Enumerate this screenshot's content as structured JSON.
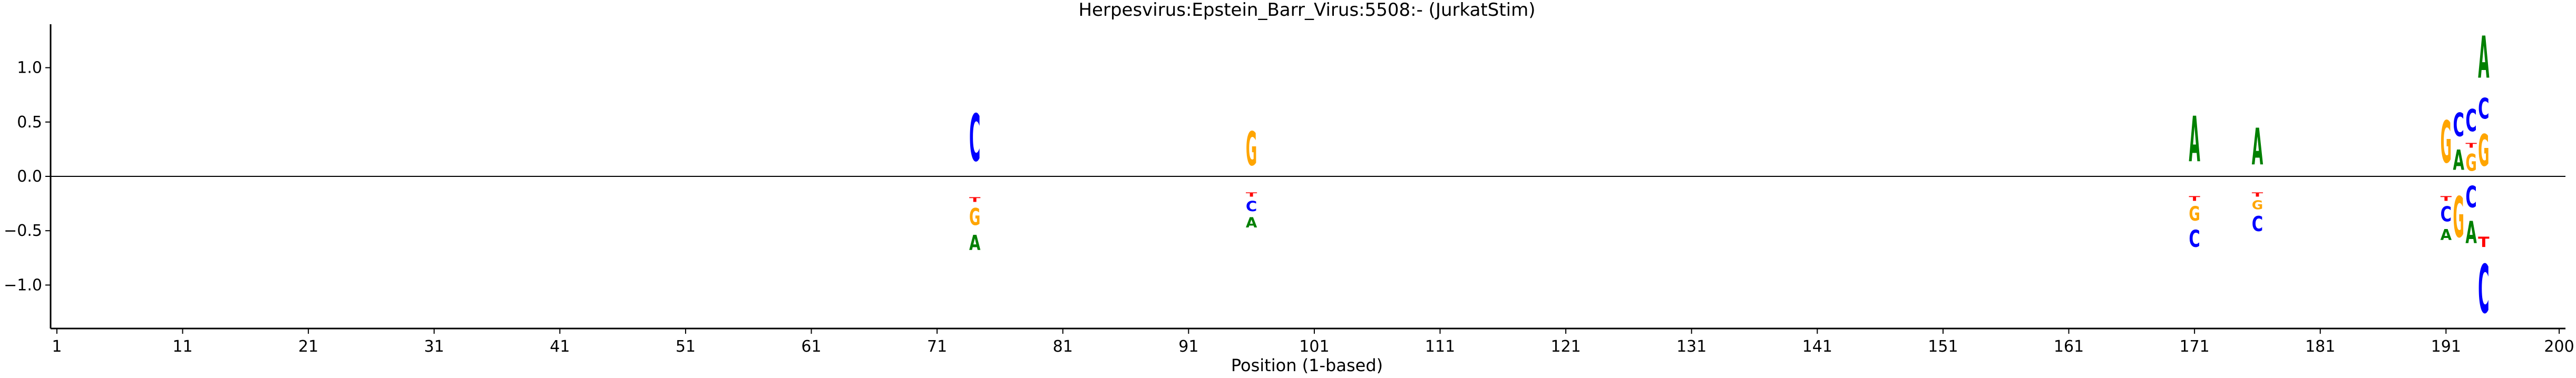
{
  "chart_data": {
    "type": "sequence-logo",
    "title": "Herpesvirus:Epstein_Barr_Virus:5508:-  (JurkatStim)",
    "xlabel": "Position (1-based)",
    "ylabel": "",
    "xlim": [
      0.5,
      200.5
    ],
    "ylim": [
      -1.4,
      1.4
    ],
    "xticks": [
      1,
      11,
      21,
      31,
      41,
      51,
      61,
      71,
      81,
      91,
      101,
      111,
      121,
      131,
      141,
      151,
      161,
      171,
      181,
      191,
      200
    ],
    "yticks": [
      -1.0,
      -0.5,
      0.0,
      0.5,
      1.0
    ],
    "ytick_labels": [
      "−1.0",
      "−0.5",
      "0.0",
      "0.5",
      "1.0"
    ],
    "grid": false,
    "legend": "none",
    "colors": {
      "A": "#008000",
      "C": "#0000ff",
      "G": "#ffa500",
      "T": "#ff0000"
    },
    "positions": [
      {
        "pos": 74,
        "stack": [
          {
            "letter": "C",
            "y0": 0.0,
            "y1": 0.7
          },
          {
            "letter": "T",
            "y0": -0.18,
            "y1": -0.25
          },
          {
            "letter": "G",
            "y0": -0.25,
            "y1": -0.5
          },
          {
            "letter": "A",
            "y0": -0.5,
            "y1": -0.72
          }
        ]
      },
      {
        "pos": 96,
        "stack": [
          {
            "letter": "G",
            "y0": 0.0,
            "y1": 0.5
          },
          {
            "letter": "T",
            "y0": -0.14,
            "y1": -0.2
          },
          {
            "letter": "C",
            "y0": -0.2,
            "y1": -0.35
          },
          {
            "letter": "A",
            "y0": -0.35,
            "y1": -0.5
          }
        ]
      },
      {
        "pos": 171,
        "stack": [
          {
            "letter": "A",
            "y0": 0.0,
            "y1": 0.67
          },
          {
            "letter": "T",
            "y0": -0.17,
            "y1": -0.24
          },
          {
            "letter": "G",
            "y0": -0.24,
            "y1": -0.45
          },
          {
            "letter": "C",
            "y0": -0.45,
            "y1": -0.7
          }
        ]
      },
      {
        "pos": 176,
        "stack": [
          {
            "letter": "A",
            "y0": 0.0,
            "y1": 0.54
          },
          {
            "letter": "T",
            "y0": -0.14,
            "y1": -0.2
          },
          {
            "letter": "G",
            "y0": -0.2,
            "y1": -0.33
          },
          {
            "letter": "C",
            "y0": -0.33,
            "y1": -0.55
          }
        ]
      },
      {
        "pos": 191,
        "stack": [
          {
            "letter": "G",
            "y0": 0.0,
            "y1": 0.62
          },
          {
            "letter": "T",
            "y0": -0.17,
            "y1": -0.24
          },
          {
            "letter": "C",
            "y0": -0.24,
            "y1": -0.46
          },
          {
            "letter": "A",
            "y0": -0.46,
            "y1": -0.62
          }
        ]
      },
      {
        "pos": 192,
        "stack": [
          {
            "letter": "C",
            "y0": 0.3,
            "y1": 0.65
          },
          {
            "letter": "A",
            "y0": 0.0,
            "y1": 0.3
          },
          {
            "letter": "G",
            "y0": -0.08,
            "y1": -0.68
          }
        ]
      },
      {
        "pos": 193,
        "stack": [
          {
            "letter": "C",
            "y0": 0.35,
            "y1": 0.68
          },
          {
            "letter": "T",
            "y0": 0.25,
            "y1": 0.32
          },
          {
            "letter": "G",
            "y0": 0.0,
            "y1": 0.25
          },
          {
            "letter": "C",
            "y0": -0.03,
            "y1": -0.35
          },
          {
            "letter": "A",
            "y0": -0.35,
            "y1": -0.68
          }
        ]
      },
      {
        "pos": 194,
        "stack": [
          {
            "letter": "A",
            "y0": 0.78,
            "y1": 1.4
          },
          {
            "letter": "C",
            "y0": 0.47,
            "y1": 0.78
          },
          {
            "letter": "G",
            "y0": 0.0,
            "y1": 0.47
          },
          {
            "letter": "T",
            "y0": -0.53,
            "y1": -0.68
          },
          {
            "letter": "C",
            "y0": -0.68,
            "y1": -1.4
          }
        ]
      }
    ]
  }
}
